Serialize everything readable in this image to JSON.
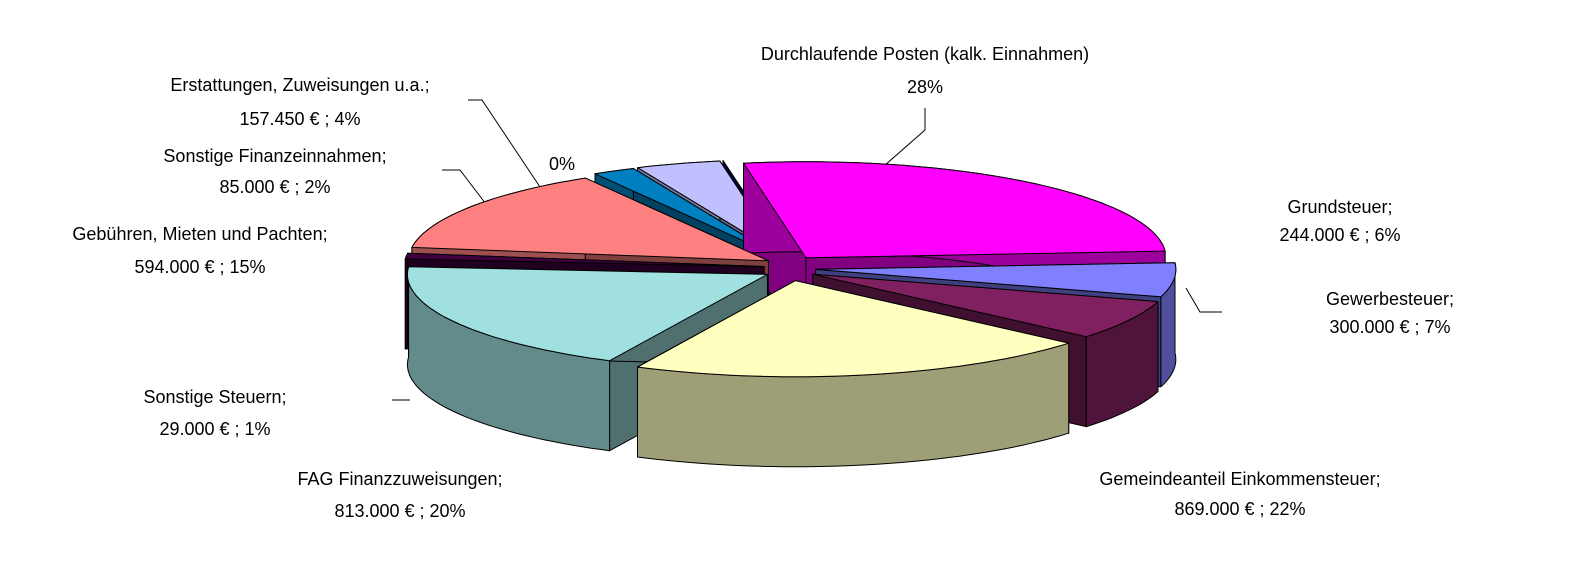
{
  "chart_data": {
    "type": "pie3d",
    "categories": [
      "Durchlaufende Posten (kalk. Einnahmen)",
      "Grundsteuer;",
      "Gewerbesteuer;",
      "Gemeindeanteil Einkommensteuer;",
      "FAG Finanzzuweisungen;",
      "Sonstige Steuern;",
      "Gebühren, Mieten und Pachten;",
      "Sonstige Finanzeinnahmen;",
      "Erstattungen, Zuweisungen u.a.;",
      null
    ],
    "values": [
      28,
      6,
      7,
      22,
      20,
      1,
      15,
      2,
      4,
      0
    ],
    "value_labels": [
      "28%",
      "244.000 € ; 6%",
      "300.000 € ; 7%",
      "869.000 € ; 22%",
      "813.000 € ; 20%",
      "29.000 € ; 1%",
      "594.000 € ; 15%",
      "85.000 € ; 2%",
      "157.450 € ; 4%",
      "0%"
    ],
    "colors": [
      "#ff00ff",
      "#8080ff",
      "#802060",
      "#ffffc0",
      "#a0e0e0",
      "#400040",
      "#ff8080",
      "#0080c0",
      "#c0c0ff",
      "#000080"
    ]
  }
}
